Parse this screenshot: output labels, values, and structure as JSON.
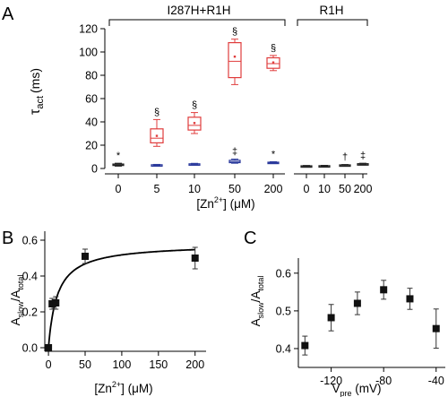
{
  "colors": {
    "axis": "#000000",
    "red": "#e03c3c",
    "blue": "#2b3a9c",
    "dark": "#222222",
    "marker": "#111111"
  },
  "chart_data": [
    {
      "panel": "A",
      "type": "box",
      "group_labels": [
        "I287H+R1H",
        "R1H"
      ],
      "ylabel_main": "τ",
      "ylabel_sub": "act",
      "ylabel_unit": "(ms)",
      "xlabel_pre": "[Zn",
      "xlabel_sup": "2+",
      "xlabel_post": "] (μM)",
      "ylim": [
        0,
        120
      ],
      "yticks": [
        0,
        20,
        40,
        60,
        80,
        100,
        120
      ],
      "tick_labels": [
        "0",
        "5",
        "10",
        "50",
        "200",
        "0",
        "10",
        "50",
        "200"
      ],
      "boxes": [
        {
          "group": "I287H+R1H",
          "zn": "0",
          "variant": "I287H+R1H",
          "color": "dark",
          "min": 2,
          "q1": 2.8,
          "median": 3,
          "mean": 3.2,
          "q3": 3.8,
          "max": 4.5,
          "marker": "*"
        },
        {
          "group": "I287H+R1H",
          "zn": "5",
          "variant": "R1H",
          "color": "blue",
          "min": 2.4,
          "q1": 2.8,
          "median": 3,
          "mean": 3,
          "q3": 3.2,
          "max": 3.5,
          "marker": ""
        },
        {
          "group": "I287H+R1H",
          "zn": "5",
          "variant": "I287H+R1H",
          "color": "red",
          "min": 19,
          "q1": 22,
          "median": 26,
          "mean": 28,
          "q3": 34,
          "max": 42,
          "marker": "§"
        },
        {
          "group": "I287H+R1H",
          "zn": "10",
          "variant": "R1H",
          "color": "blue",
          "min": 3,
          "q1": 3.4,
          "median": 3.7,
          "mean": 3.7,
          "q3": 4,
          "max": 4.4,
          "marker": ""
        },
        {
          "group": "I287H+R1H",
          "zn": "10",
          "variant": "I287H+R1H",
          "color": "red",
          "min": 30,
          "q1": 33,
          "median": 37,
          "mean": 39,
          "q3": 44,
          "max": 48,
          "marker": "§"
        },
        {
          "group": "I287H+R1H",
          "zn": "50",
          "variant": "R1H",
          "color": "blue",
          "min": 4.5,
          "q1": 5,
          "median": 5.6,
          "mean": 6,
          "q3": 7,
          "max": 8,
          "marker": "‡"
        },
        {
          "group": "I287H+R1H",
          "zn": "50",
          "variant": "I287H+R1H",
          "color": "red",
          "min": 72,
          "q1": 78,
          "median": 92,
          "mean": 96,
          "q3": 108,
          "max": 111,
          "marker": "§"
        },
        {
          "group": "I287H+R1H",
          "zn": "200",
          "variant": "R1H",
          "color": "blue",
          "min": 4.2,
          "q1": 4.6,
          "median": 5,
          "mean": 5,
          "q3": 5.4,
          "max": 5.8,
          "marker": "*"
        },
        {
          "group": "I287H+R1H",
          "zn": "200",
          "variant": "I287H+R1H",
          "color": "red",
          "min": 84,
          "q1": 86,
          "median": 90,
          "mean": 91,
          "q3": 95,
          "max": 97,
          "marker": "§"
        },
        {
          "group": "R1H",
          "zn": "0",
          "variant": "R1H",
          "color": "dark",
          "min": 1.4,
          "q1": 1.8,
          "median": 2,
          "mean": 2,
          "q3": 2.3,
          "max": 2.6,
          "marker": ""
        },
        {
          "group": "R1H",
          "zn": "10",
          "variant": "R1H",
          "color": "dark",
          "min": 1.5,
          "q1": 1.9,
          "median": 2.1,
          "mean": 2.1,
          "q3": 2.4,
          "max": 2.7,
          "marker": ""
        },
        {
          "group": "R1H",
          "zn": "50",
          "variant": "R1H",
          "color": "dark",
          "min": 2,
          "q1": 2.5,
          "median": 2.8,
          "mean": 2.8,
          "q3": 3.1,
          "max": 3.4,
          "marker": "†"
        },
        {
          "group": "R1H",
          "zn": "200",
          "variant": "R1H",
          "color": "dark",
          "min": 3,
          "q1": 3.4,
          "median": 3.8,
          "mean": 3.8,
          "q3": 4.1,
          "max": 4.5,
          "marker": "‡"
        }
      ]
    },
    {
      "panel": "B",
      "type": "scatter",
      "ylabel_main": "A",
      "ylabel_sub1": "slow",
      "ylabel_mid": "/A",
      "ylabel_sub2": "total",
      "xlabel_pre": "[Zn",
      "xlabel_sup": "2+",
      "xlabel_post": "] (μM)",
      "xlim": [
        -5,
        215
      ],
      "ylim": [
        -0.02,
        0.65
      ],
      "xticks": [
        0,
        50,
        100,
        150,
        200
      ],
      "yticks": [
        0.0,
        0.2,
        0.4,
        0.6
      ],
      "ytick_labels": [
        "0.0",
        "0.2",
        "0.4",
        "0.6"
      ],
      "points": [
        {
          "x": 0,
          "y": 0.0,
          "err": 0.0
        },
        {
          "x": 5,
          "y": 0.245,
          "err": 0.03
        },
        {
          "x": 10,
          "y": 0.25,
          "err": 0.035
        },
        {
          "x": 50,
          "y": 0.51,
          "err": 0.04
        },
        {
          "x": 200,
          "y": 0.5,
          "err": 0.06
        }
      ],
      "fit": {
        "type": "hyperbolic",
        "max": 0.58,
        "k": 12
      }
    },
    {
      "panel": "C",
      "type": "scatter",
      "ylabel_main": "A",
      "ylabel_sub1": "slow",
      "ylabel_mid": "/A",
      "ylabel_sub2": "total",
      "xlabel_main": "V",
      "xlabel_sub": "pre",
      "xlabel_unit": " (mV)",
      "xlim": [
        -145,
        -33
      ],
      "ylim": [
        0.35,
        0.64
      ],
      "xticks": [
        -120,
        -80,
        -40
      ],
      "yticks": [
        0.4,
        0.5,
        0.6
      ],
      "ytick_labels": [
        "0.4",
        "0.5",
        "0.6"
      ],
      "points": [
        {
          "x": -140,
          "y": 0.408,
          "err": 0.025
        },
        {
          "x": -120,
          "y": 0.482,
          "err": 0.035
        },
        {
          "x": -100,
          "y": 0.52,
          "err": 0.03
        },
        {
          "x": -80,
          "y": 0.556,
          "err": 0.025
        },
        {
          "x": -60,
          "y": 0.532,
          "err": 0.028
        },
        {
          "x": -40,
          "y": 0.453,
          "err": 0.052
        }
      ]
    }
  ],
  "panel_labels": {
    "a": "A",
    "b": "B",
    "c": "C"
  }
}
